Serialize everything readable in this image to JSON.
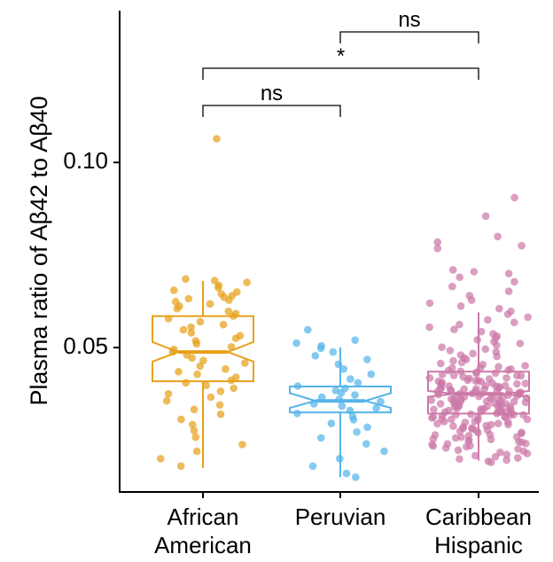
{
  "chart_data": {
    "type": "box",
    "title": "",
    "xlabel": "",
    "ylabel": "Plasma ratio of Aβ42 to Aβ40",
    "ylim": [
      0.011,
      0.141
    ],
    "yticks": [
      {
        "value": 0.05,
        "label": "0.05"
      },
      {
        "value": 0.1,
        "label": "0.10"
      }
    ],
    "categories": [
      {
        "line1": "African",
        "line2": "American"
      },
      {
        "line1": "Peruvian",
        "line2": ""
      },
      {
        "line1": "Caribbean",
        "line2": "Hispanic"
      }
    ],
    "series": [
      {
        "color": "#E6A11A",
        "box": {
          "q1": 0.0409,
          "median": 0.0488,
          "q3": 0.0585,
          "whisker_low": 0.0175,
          "whisker_high": 0.068,
          "notch_low": 0.0462,
          "notch_high": 0.0515
        },
        "points": [
          0.1064,
          0.0685,
          0.0681,
          0.0676,
          0.0668,
          0.0662,
          0.0655,
          0.065,
          0.0645,
          0.064,
          0.0636,
          0.0632,
          0.0628,
          0.0624,
          0.0618,
          0.0612,
          0.0605,
          0.0598,
          0.0592,
          0.0585,
          0.0578,
          0.057,
          0.0562,
          0.0555,
          0.0548,
          0.054,
          0.0532,
          0.0525,
          0.0518,
          0.051,
          0.0502,
          0.0495,
          0.0488,
          0.048,
          0.0472,
          0.0465,
          0.0458,
          0.045,
          0.0442,
          0.0435,
          0.0428,
          0.042,
          0.0412,
          0.0405,
          0.0398,
          0.039,
          0.0382,
          0.0375,
          0.0366,
          0.0356,
          0.0345,
          0.0333,
          0.032,
          0.0306,
          0.0292,
          0.0276,
          0.0258,
          0.0238,
          0.022,
          0.02,
          0.018
        ]
      },
      {
        "color": "#56B4E9",
        "box": {
          "q1": 0.0325,
          "median": 0.0356,
          "q3": 0.0395,
          "whisker_low": 0.015,
          "whisker_high": 0.05,
          "notch_low": 0.0337,
          "notch_high": 0.0377
        },
        "points": [
          0.0548,
          0.052,
          0.0512,
          0.0505,
          0.0498,
          0.0488,
          0.0478,
          0.0468,
          0.0455,
          0.0442,
          0.0428,
          0.0415,
          0.0405,
          0.0396,
          0.039,
          0.0384,
          0.0378,
          0.0372,
          0.0366,
          0.036,
          0.0354,
          0.0348,
          0.0342,
          0.0336,
          0.033,
          0.0322,
          0.0314,
          0.0305,
          0.0295,
          0.0285,
          0.0272,
          0.0256,
          0.024,
          0.022,
          0.02,
          0.018,
          0.016,
          0.015
        ]
      },
      {
        "color": "#CC79A7",
        "box": {
          "q1": 0.0322,
          "median": 0.0375,
          "q3": 0.0435,
          "whisker_low": 0.0195,
          "whisker_high": 0.0595,
          "notch_low": 0.0367,
          "notch_high": 0.0383
        },
        "points": [
          0.0905,
          0.0855,
          0.08,
          0.0785,
          0.0775,
          0.0768,
          0.071,
          0.0705,
          0.07,
          0.069,
          0.0678,
          0.0665,
          0.0652,
          0.064,
          0.0628,
          0.062,
          0.0612,
          0.0605,
          0.0598,
          0.059,
          0.0582,
          0.0575,
          0.0568,
          0.0562,
          0.0555,
          0.0549,
          0.0543,
          0.0537,
          0.0531,
          0.0526,
          0.0521,
          0.0516,
          0.0511,
          0.0506,
          0.0501,
          0.0496,
          0.0492,
          0.0488,
          0.0484,
          0.048,
          0.0476,
          0.0472,
          0.0468,
          0.0464,
          0.046,
          0.0457,
          0.0454,
          0.0451,
          0.0448,
          0.0445,
          0.0442,
          0.0439,
          0.0436,
          0.0433,
          0.043,
          0.0427,
          0.0424,
          0.0421,
          0.0418,
          0.0415,
          0.0412,
          0.0409,
          0.0406,
          0.0403,
          0.04,
          0.0397,
          0.0394,
          0.0391,
          0.0388,
          0.0385,
          0.0382,
          0.0379,
          0.0376,
          0.0373,
          0.037,
          0.0367,
          0.0364,
          0.0361,
          0.0358,
          0.0355,
          0.0352,
          0.0349,
          0.0346,
          0.0343,
          0.034,
          0.0337,
          0.0334,
          0.0331,
          0.0328,
          0.0325,
          0.0322,
          0.0319,
          0.0316,
          0.0313,
          0.031,
          0.0307,
          0.0304,
          0.0301,
          0.0298,
          0.0295,
          0.0292,
          0.0289,
          0.0286,
          0.0283,
          0.028,
          0.0277,
          0.0274,
          0.0271,
          0.0268,
          0.0265,
          0.0262,
          0.0259,
          0.0256,
          0.0253,
          0.025,
          0.0247,
          0.0244,
          0.0241,
          0.0238,
          0.0235,
          0.0232,
          0.0229,
          0.0226,
          0.0223,
          0.022,
          0.0217,
          0.0214,
          0.0211,
          0.0208,
          0.0205,
          0.0202,
          0.0199,
          0.0196,
          0.0193,
          0.019,
          0.0388,
          0.0381,
          0.0374,
          0.0366,
          0.0358,
          0.035,
          0.0342,
          0.0334,
          0.0326,
          0.0318,
          0.0408,
          0.0402,
          0.0396,
          0.039,
          0.0384,
          0.0378,
          0.0372,
          0.0366,
          0.036,
          0.0354,
          0.0348,
          0.0342,
          0.0336,
          0.033,
          0.0324,
          0.0318,
          0.0312,
          0.0306,
          0.03,
          0.0294,
          0.0288,
          0.0282,
          0.0276,
          0.027,
          0.0264,
          0.0258,
          0.0252,
          0.0246,
          0.024,
          0.0234,
          0.0425,
          0.0418,
          0.0411,
          0.0404,
          0.0397,
          0.039,
          0.0383,
          0.0376,
          0.0369,
          0.0362,
          0.0355,
          0.0348,
          0.0341,
          0.0334,
          0.0327,
          0.032,
          0.0313,
          0.0306,
          0.0299,
          0.0292,
          0.0445,
          0.0438,
          0.0431,
          0.0424,
          0.0417,
          0.041,
          0.0403,
          0.0396,
          0.0389,
          0.0382,
          0.0375,
          0.0368,
          0.0361,
          0.0354,
          0.0347,
          0.034,
          0.0333,
          0.0326,
          0.0319,
          0.0312
        ]
      }
    ],
    "comparisons": [
      {
        "from": 1,
        "to": 2,
        "label": "ns"
      },
      {
        "from": 0,
        "to": 2,
        "label": "*"
      },
      {
        "from": 0,
        "to": 1,
        "label": "ns"
      }
    ],
    "grid": false,
    "legend": "none"
  }
}
